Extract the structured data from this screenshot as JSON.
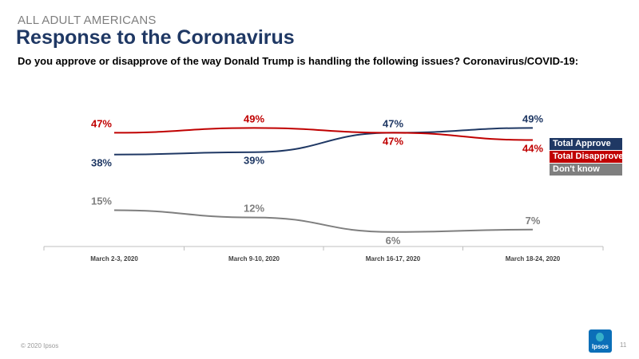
{
  "header": {
    "kicker": "ALL ADULT AMERICANS",
    "title": "Response to the Coronavirus",
    "question": "Do you approve or disapprove of the way Donald Trump is handling the following issues? Coronavirus/COVID-19:"
  },
  "chart_data": {
    "type": "line",
    "categories": [
      "March 2-3, 2020",
      "March 9-10, 2020",
      "March 16-17, 2020",
      "March 18-24, 2020"
    ],
    "series": [
      {
        "name": "Total Approve",
        "values": [
          38,
          39,
          47,
          49
        ],
        "color": "#1f3864"
      },
      {
        "name": "Total Disapprove",
        "values": [
          47,
          49,
          47,
          44
        ],
        "color": "#c00000"
      },
      {
        "name": "Don't know",
        "values": [
          15,
          12,
          6,
          7
        ],
        "color": "#7f7f7f"
      }
    ],
    "value_suffix": "%",
    "ylim": [
      0,
      60
    ],
    "grid": false,
    "legend_position": "right"
  },
  "footer": {
    "copyright": "© 2020 Ipsos",
    "page_number": "11",
    "logo_text": "Ipsos"
  }
}
